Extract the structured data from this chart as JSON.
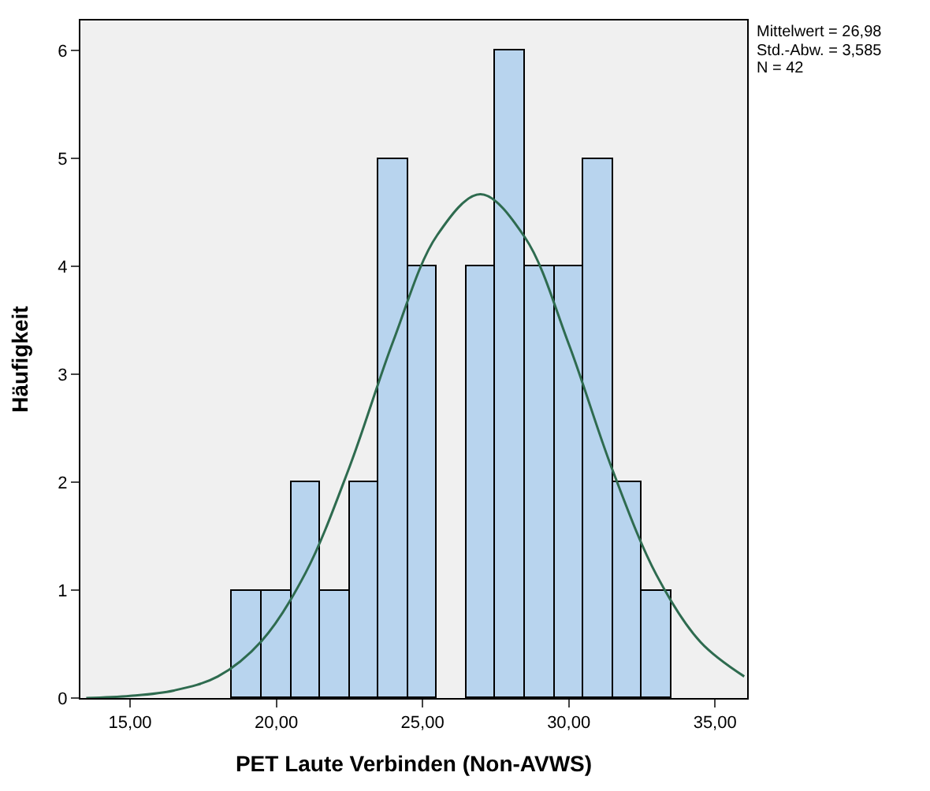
{
  "chart_data": {
    "type": "histogram",
    "xlabel": "PET Laute Verbinden (Non-AVWS)",
    "ylabel": "Häufigkeit",
    "annotations": [
      "Mittelwert = 26,98",
      "Std.-Abw. = 3,585",
      "N = 42"
    ],
    "series": [
      {
        "color": "#b8d4ee",
        "bins": [
          18.5,
          19.5,
          20.5,
          21.5,
          22.5,
          23.5,
          24.5,
          25.5,
          26.5,
          27.5,
          28.5,
          29.5,
          30.5,
          31.5,
          32.5,
          33.5
        ],
        "values": [
          1,
          1,
          2,
          1,
          2,
          5,
          4,
          0,
          4,
          6,
          4,
          4,
          5,
          2,
          1
        ]
      },
      {
        "type": "line",
        "color": "#2e6b4f",
        "x": [
          13.5,
          15,
          16.5,
          18,
          19.5,
          21,
          22.5,
          24,
          25.5,
          26.98,
          28.5,
          30,
          31.5,
          33,
          34.5,
          36
        ],
        "values": [
          0.0,
          0.02,
          0.07,
          0.2,
          0.53,
          1.16,
          2.14,
          3.31,
          4.29,
          4.67,
          4.27,
          3.28,
          2.11,
          1.14,
          0.52,
          0.2
        ]
      }
    ],
    "xlim": [
      13.3,
      36.1
    ],
    "ylim": [
      0,
      6.28
    ],
    "xticks": [
      {
        "value": 15,
        "label": "15,00"
      },
      {
        "value": 20,
        "label": "20,00"
      },
      {
        "value": 25,
        "label": "25,00"
      },
      {
        "value": 30,
        "label": "30,00"
      },
      {
        "value": 35,
        "label": "35,00"
      }
    ],
    "yticks": [
      0,
      1,
      2,
      3,
      4,
      5,
      6
    ],
    "grid": false
  }
}
